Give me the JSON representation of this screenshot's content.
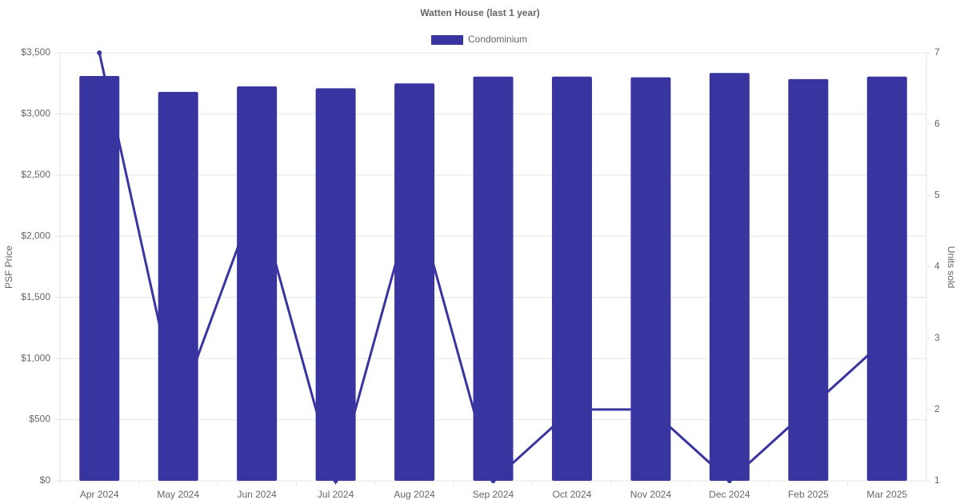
{
  "chart_data": {
    "type": "bar",
    "title": "Watten House (last 1 year)",
    "categories": [
      "Apr 2024",
      "May 2024",
      "Jun 2024",
      "Jul 2024",
      "Aug 2024",
      "Sep 2024",
      "Oct 2024",
      "Nov 2024",
      "Dec 2024",
      "Feb 2025",
      "Mar 2025"
    ],
    "series": [
      {
        "name": "Condominium",
        "type": "bar",
        "color": "#3935a0",
        "values": [
          3310,
          3180,
          3225,
          3210,
          3250,
          3305,
          3305,
          3300,
          3335,
          3285,
          3305
        ]
      },
      {
        "type": "line",
        "axis": "y2",
        "color": "#3935a0",
        "values": [
          7,
          2,
          5,
          1,
          5,
          1,
          2,
          2,
          1,
          2,
          3
        ]
      }
    ],
    "y_label": "PSF Price",
    "y2_label": "Units sold",
    "ylim": [
      0,
      3500
    ],
    "yticks": [
      {
        "value": 0,
        "label": "$0"
      },
      {
        "value": 500,
        "label": "$500"
      },
      {
        "value": 1000,
        "label": "$1,000"
      },
      {
        "value": 1500,
        "label": "$1,500"
      },
      {
        "value": 2000,
        "label": "$2,000"
      },
      {
        "value": 2500,
        "label": "$2,500"
      },
      {
        "value": 3000,
        "label": "$3,000"
      },
      {
        "value": 3500,
        "label": "$3,500"
      }
    ],
    "y2lim": [
      1,
      7
    ],
    "y2ticks": [
      1,
      2,
      3,
      4,
      5,
      6,
      7
    ],
    "grid": true,
    "legend": "top"
  }
}
